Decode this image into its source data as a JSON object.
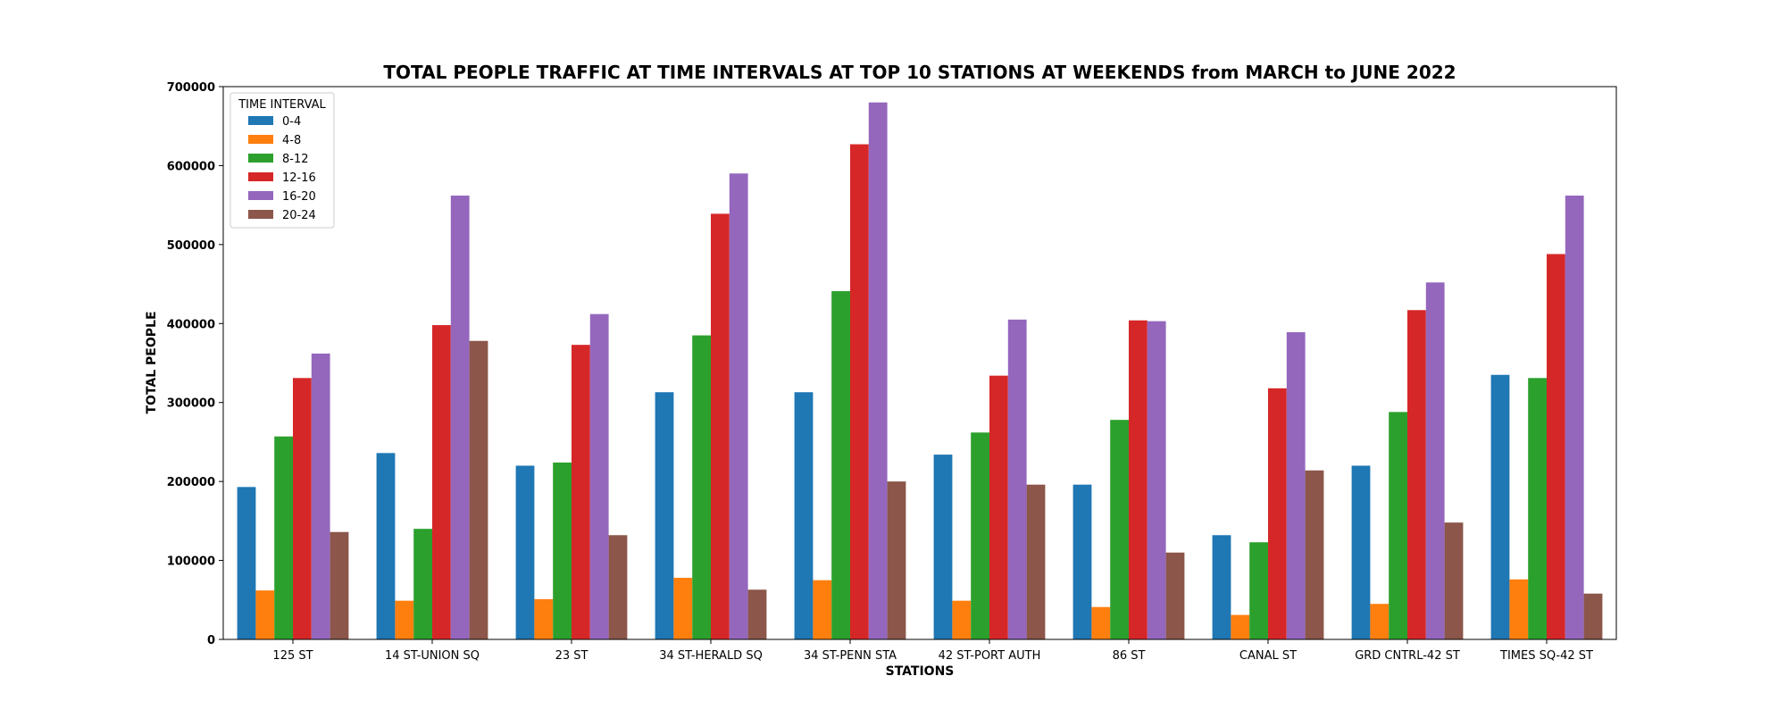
{
  "chart_data": {
    "type": "bar",
    "title": "TOTAL PEOPLE TRAFFIC AT TIME INTERVALS AT TOP 10 STATIONS AT WEEKENDS from MARCH to JUNE 2022",
    "xlabel": "STATIONS",
    "ylabel": "TOTAL PEOPLE",
    "ylim": [
      0,
      700000
    ],
    "yticks": [
      "0",
      "100000",
      "200000",
      "300000",
      "400000",
      "500000",
      "600000",
      "700000"
    ],
    "categories": [
      "125 ST",
      "14 ST-UNION SQ",
      "23 ST",
      "34 ST-HERALD SQ",
      "34 ST-PENN STA",
      "42 ST-PORT AUTH",
      "86 ST",
      "CANAL ST",
      "GRD CNTRL-42 ST",
      "TIMES SQ-42 ST"
    ],
    "legend_title": "TIME INTERVAL",
    "legend_position": "top-left",
    "grid": false,
    "series": [
      {
        "name": "0-4",
        "color": "#1f77b4",
        "values": [
          193000,
          236000,
          220000,
          313000,
          313000,
          234000,
          196000,
          132000,
          220000,
          335000
        ]
      },
      {
        "name": "4-8",
        "color": "#ff7f0e",
        "values": [
          62000,
          49000,
          51000,
          78000,
          75000,
          49000,
          41000,
          31000,
          45000,
          76000
        ]
      },
      {
        "name": "8-12",
        "color": "#2ca02c",
        "values": [
          257000,
          140000,
          224000,
          385000,
          441000,
          262000,
          278000,
          123000,
          288000,
          331000
        ]
      },
      {
        "name": "12-16",
        "color": "#d62728",
        "values": [
          331000,
          398000,
          373000,
          539000,
          627000,
          334000,
          404000,
          318000,
          417000,
          488000
        ]
      },
      {
        "name": "16-20",
        "color": "#9467bd",
        "values": [
          362000,
          562000,
          412000,
          590000,
          680000,
          405000,
          403000,
          389000,
          452000,
          562000
        ]
      },
      {
        "name": "20-24",
        "color": "#8c564b",
        "values": [
          136000,
          378000,
          132000,
          63000,
          200000,
          196000,
          110000,
          214000,
          148000,
          58000
        ]
      }
    ]
  }
}
